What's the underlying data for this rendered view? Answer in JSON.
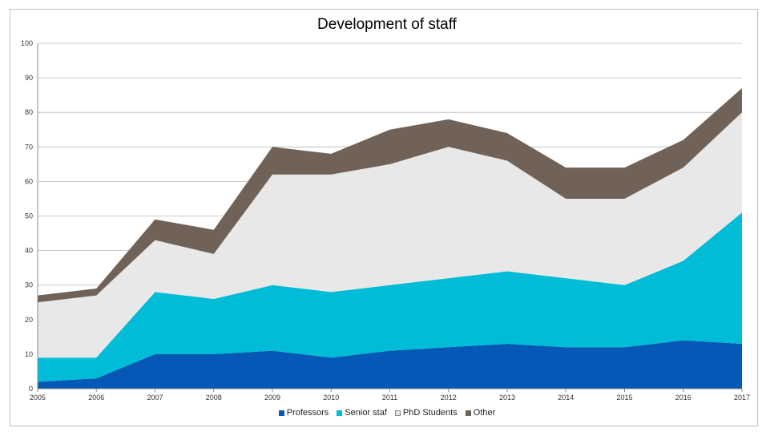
{
  "chart_data": {
    "type": "area",
    "stacked": true,
    "title": "Development of staff",
    "xlabel": "",
    "ylabel": "",
    "x": [
      "2005",
      "2006",
      "2007",
      "2008",
      "2009",
      "2010",
      "2011",
      "2012",
      "2013",
      "2014",
      "2015",
      "2016",
      "2017"
    ],
    "ylim": [
      0,
      100
    ],
    "yticks": [
      0,
      10,
      20,
      30,
      40,
      50,
      60,
      70,
      80,
      90,
      100
    ],
    "grid": true,
    "legend_position": "bottom",
    "series": [
      {
        "name": "Professors",
        "color": "#0558b5",
        "values": [
          2,
          3,
          10,
          10,
          11,
          9,
          11,
          12,
          13,
          12,
          12,
          14,
          13
        ]
      },
      {
        "name": "Senior staf",
        "color": "#00bcd6",
        "values": [
          7,
          6,
          18,
          16,
          19,
          19,
          19,
          20,
          21,
          20,
          18,
          23,
          38
        ]
      },
      {
        "name": "PhD Students",
        "color": "#e8e8e8",
        "values": [
          16,
          18,
          15,
          13,
          32,
          34,
          35,
          38,
          32,
          23,
          25,
          27,
          29
        ]
      },
      {
        "name": "Other",
        "color": "#716258",
        "values": [
          2,
          2,
          6,
          7,
          8,
          6,
          10,
          8,
          8,
          9,
          9,
          8,
          7
        ]
      }
    ]
  }
}
